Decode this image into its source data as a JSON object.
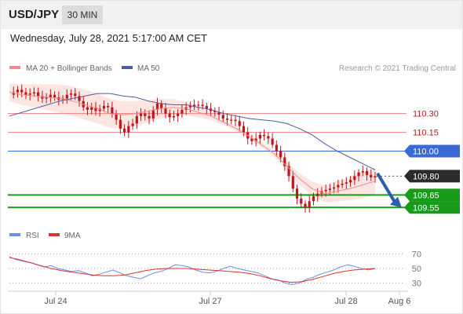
{
  "header": {
    "symbol": "USD/JPY",
    "timeframe": "30 MIN"
  },
  "datetime": "Wednesday, July 28, 2021 5:17:00 AM CET",
  "legend": {
    "ma_bb_label": "MA 20 + Bollinger Bands",
    "ma50_label": "MA 50",
    "credit": "Research © 2021 Trading Central",
    "rsi_label": "RSI",
    "ma9_label": "9MA"
  },
  "colors": {
    "candle": "#c0161b",
    "ma20": "#f08c8c",
    "band": "#fde0dc",
    "ma50": "#4a5fa0",
    "blue_level": "#3a6ad8",
    "red_level": "#f08080",
    "green_level": "#1a9a1a",
    "arrow": "#2d5fa8",
    "rsi": "#6a8ee0",
    "ma9": "#e03030"
  },
  "chart_data": [
    {
      "type": "candlestick",
      "ylim": [
        109.42,
        110.58
      ],
      "levels": [
        {
          "value": 110.3,
          "label": "110.30",
          "style": "red-line"
        },
        {
          "value": 110.15,
          "label": "110.15",
          "style": "red-line"
        },
        {
          "value": 110.0,
          "label": "110.00",
          "style": "blue-box"
        },
        {
          "value": 109.8,
          "label": "109.80",
          "style": "last-price"
        },
        {
          "value": 109.65,
          "label": "109.65",
          "style": "green-box"
        },
        {
          "value": 109.55,
          "label": "109.55",
          "style": "green-box"
        }
      ],
      "last_price": 109.8,
      "x_ticks": [
        "Jul 24",
        "Jul 27",
        "Jul 28",
        "Aug 6"
      ],
      "close_path": [
        110.45,
        110.47,
        110.49,
        110.47,
        110.45,
        110.46,
        110.47,
        110.44,
        110.42,
        110.43,
        110.45,
        110.43,
        110.41,
        110.42,
        110.45,
        110.46,
        110.44,
        110.4,
        110.35,
        110.33,
        110.35,
        110.32,
        110.34,
        110.36,
        110.35,
        110.3,
        110.25,
        110.18,
        110.15,
        110.2,
        110.22,
        110.28,
        110.3,
        110.28,
        110.26,
        110.33,
        110.38,
        110.34,
        110.3,
        110.27,
        110.28,
        110.3,
        110.33,
        110.35,
        110.36,
        110.37,
        110.37,
        110.36,
        110.34,
        110.32,
        110.31,
        110.29,
        110.26,
        110.25,
        110.25,
        110.24,
        110.2,
        110.15,
        110.1,
        110.08,
        110.1,
        110.13,
        110.12,
        110.1,
        110.05,
        110.0,
        109.95,
        109.88,
        109.8,
        109.7,
        109.62,
        109.58,
        109.55,
        109.6,
        109.64,
        109.66,
        109.68,
        109.69,
        109.7,
        109.71,
        109.73,
        109.74,
        109.75,
        109.77,
        109.8,
        109.83,
        109.84,
        109.81,
        109.79,
        109.8
      ],
      "ma50_path": [
        110.28,
        110.31,
        110.34,
        110.37,
        110.4,
        110.42,
        110.44,
        110.46,
        110.46,
        110.44,
        110.43,
        110.4,
        110.38,
        110.37,
        110.37,
        110.35,
        110.33,
        110.3,
        110.28,
        110.26,
        110.25,
        110.24,
        110.22,
        110.18,
        110.13,
        110.06,
        110.0,
        109.95,
        109.9,
        109.85
      ],
      "ma20_path": [
        110.47,
        110.45,
        110.44,
        110.43,
        110.42,
        110.4,
        110.37,
        110.34,
        110.3,
        110.29,
        110.3,
        110.32,
        110.34,
        110.35,
        110.34,
        110.31,
        110.28,
        110.23,
        110.18,
        110.12,
        110.05,
        109.98,
        109.88,
        109.78,
        109.7,
        109.66,
        109.68,
        109.7,
        109.73,
        109.76
      ],
      "forecast_arrow": {
        "from": 109.81,
        "to": 109.56
      }
    },
    {
      "type": "line",
      "title": "RSI",
      "ylim": [
        20,
        80
      ],
      "y_ticks": [
        70,
        50,
        30
      ],
      "rsi_values": [
        66,
        62,
        60,
        58,
        55,
        52,
        54,
        50,
        48,
        46,
        47,
        44,
        40,
        42,
        45,
        48,
        44,
        40,
        38,
        36,
        40,
        44,
        46,
        50,
        55,
        54,
        52,
        48,
        45,
        44,
        46,
        50,
        53,
        50,
        48,
        46,
        44,
        40,
        36,
        34,
        30,
        28,
        30,
        35,
        38,
        42,
        45,
        48,
        52,
        55,
        53,
        50,
        48,
        50
      ],
      "ma9_values": [
        65,
        62,
        58,
        54,
        50,
        47,
        45,
        43,
        41,
        40,
        40,
        41,
        44,
        47,
        49,
        50,
        50,
        50,
        49,
        48,
        47,
        46,
        45,
        43,
        40,
        36,
        33,
        31,
        32,
        35,
        39,
        43,
        46,
        48,
        49,
        50
      ]
    }
  ]
}
